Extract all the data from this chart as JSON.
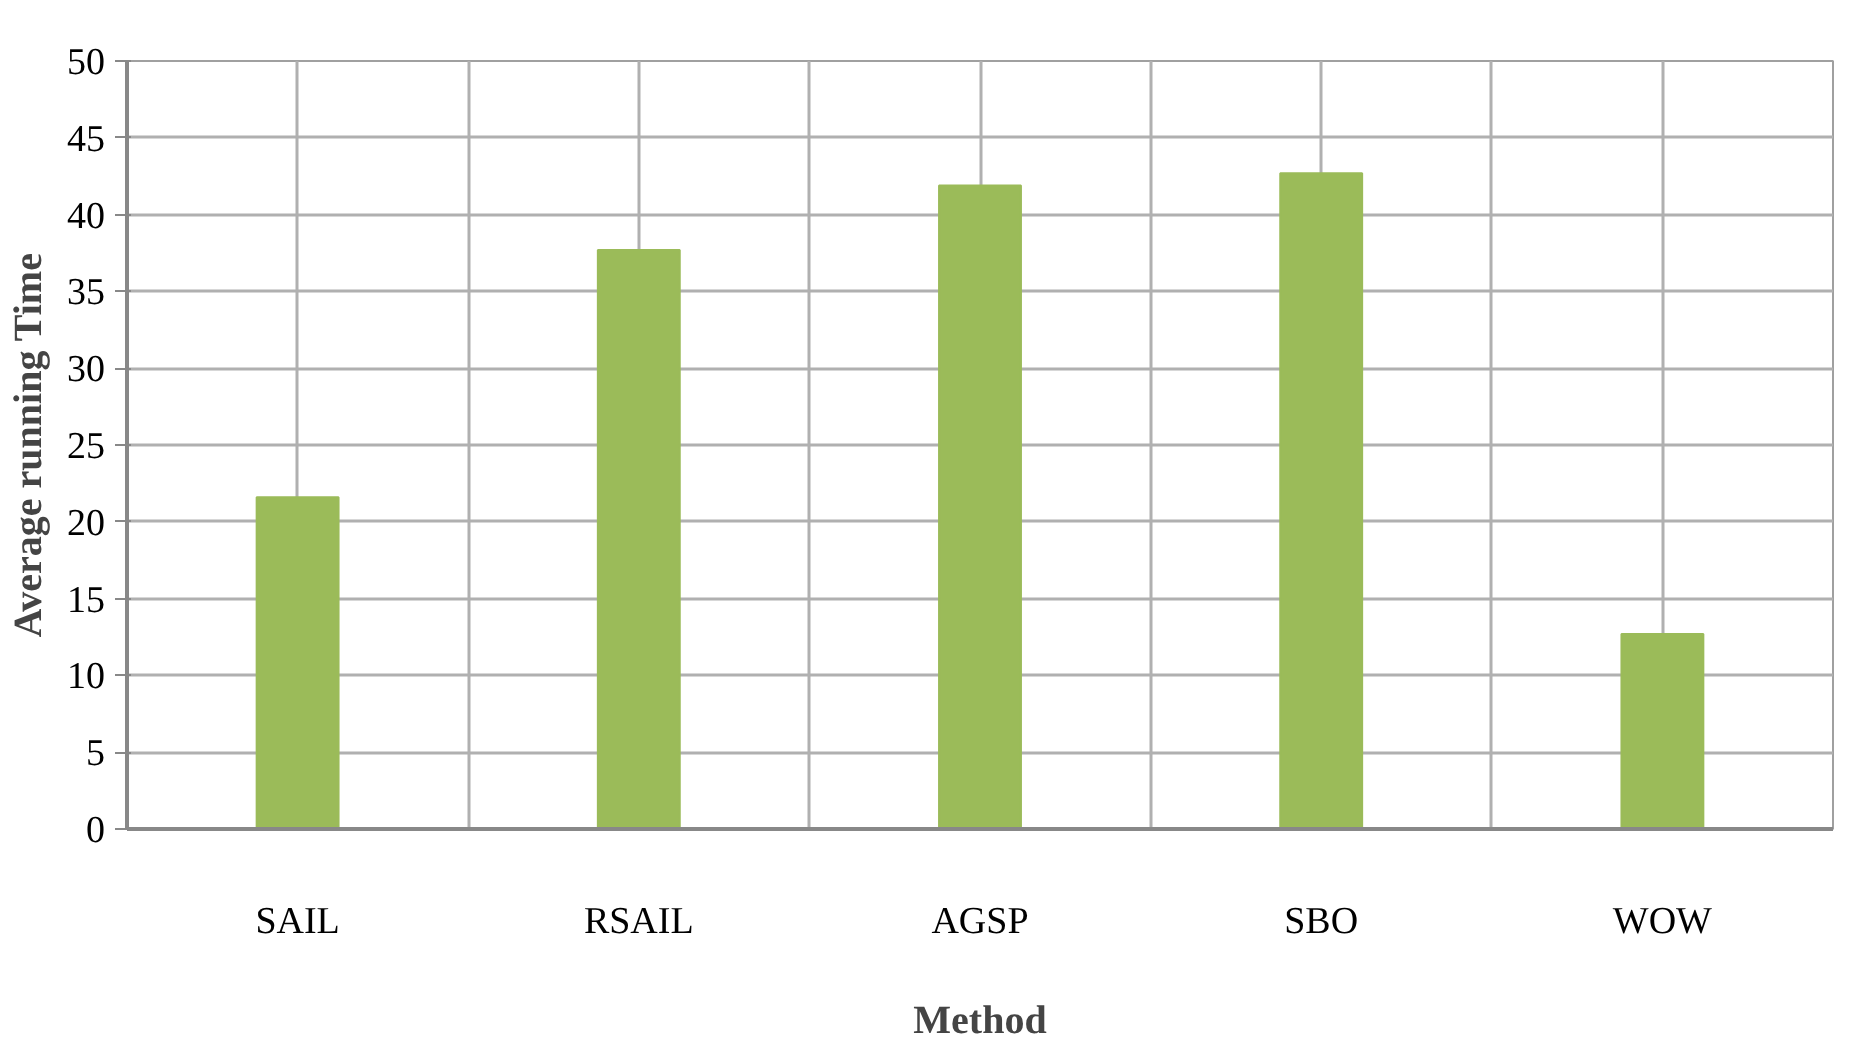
{
  "chart_data": {
    "type": "bar",
    "xlabel": "Method",
    "ylabel": "Average running Time",
    "categories": [
      "SAIL",
      "RSAIL",
      "AGSP",
      "SBO",
      "WOW"
    ],
    "values": [
      21.6,
      37.7,
      41.9,
      42.7,
      12.7
    ],
    "color": "#9bbb59",
    "ylim": [
      0,
      50
    ],
    "yticks": [
      0,
      5,
      10,
      15,
      20,
      25,
      30,
      35,
      40,
      45,
      50
    ],
    "grid": true,
    "legend": false
  }
}
